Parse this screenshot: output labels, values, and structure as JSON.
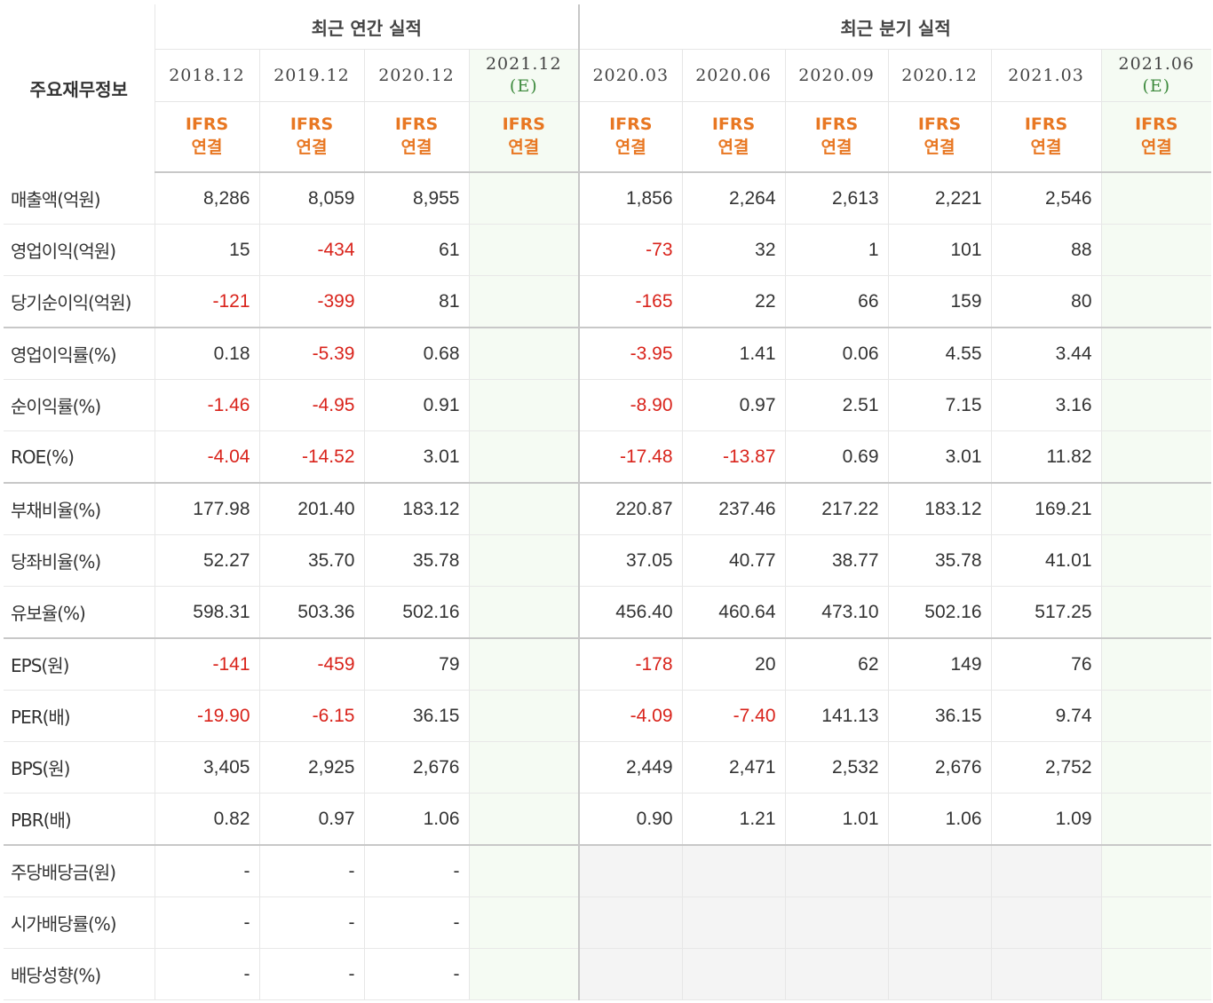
{
  "table": {
    "title": "주요재무정보",
    "groups": {
      "annual": "최근 연간 실적",
      "quarterly": "최근 분기 실적"
    },
    "annual_dates": [
      {
        "date": "2018.12",
        "tag": ""
      },
      {
        "date": "2019.12",
        "tag": ""
      },
      {
        "date": "2020.12",
        "tag": ""
      },
      {
        "date": "2021.12",
        "tag": "(E)"
      }
    ],
    "quarter_dates": [
      {
        "date": "2020.03",
        "tag": ""
      },
      {
        "date": "2020.06",
        "tag": ""
      },
      {
        "date": "2020.09",
        "tag": ""
      },
      {
        "date": "2020.12",
        "tag": ""
      },
      {
        "date": "2021.03",
        "tag": ""
      },
      {
        "date": "2021.06",
        "tag": "(E)"
      }
    ],
    "ifrs_line1": "IFRS",
    "ifrs_line2": "연결",
    "rows": [
      {
        "label": "매출액(억원)",
        "annual": [
          "8,286",
          "8,059",
          "8,955",
          ""
        ],
        "quarterly": [
          "1,856",
          "2,264",
          "2,613",
          "2,221",
          "2,546",
          ""
        ]
      },
      {
        "label": "영업이익(억원)",
        "annual": [
          "15",
          "-434",
          "61",
          ""
        ],
        "quarterly": [
          "-73",
          "32",
          "1",
          "101",
          "88",
          ""
        ]
      },
      {
        "label": "당기순이익(억원)",
        "annual": [
          "-121",
          "-399",
          "81",
          ""
        ],
        "quarterly": [
          "-165",
          "22",
          "66",
          "159",
          "80",
          ""
        ]
      },
      {
        "label": "영업이익률(%)",
        "annual": [
          "0.18",
          "-5.39",
          "0.68",
          ""
        ],
        "quarterly": [
          "-3.95",
          "1.41",
          "0.06",
          "4.55",
          "3.44",
          ""
        ]
      },
      {
        "label": "순이익률(%)",
        "annual": [
          "-1.46",
          "-4.95",
          "0.91",
          ""
        ],
        "quarterly": [
          "-8.90",
          "0.97",
          "2.51",
          "7.15",
          "3.16",
          ""
        ]
      },
      {
        "label": "ROE(%)",
        "annual": [
          "-4.04",
          "-14.52",
          "3.01",
          ""
        ],
        "quarterly": [
          "-17.48",
          "-13.87",
          "0.69",
          "3.01",
          "11.82",
          ""
        ]
      },
      {
        "label": "부채비율(%)",
        "annual": [
          "177.98",
          "201.40",
          "183.12",
          ""
        ],
        "quarterly": [
          "220.87",
          "237.46",
          "217.22",
          "183.12",
          "169.21",
          ""
        ]
      },
      {
        "label": "당좌비율(%)",
        "annual": [
          "52.27",
          "35.70",
          "35.78",
          ""
        ],
        "quarterly": [
          "37.05",
          "40.77",
          "38.77",
          "35.78",
          "41.01",
          ""
        ]
      },
      {
        "label": "유보율(%)",
        "annual": [
          "598.31",
          "503.36",
          "502.16",
          ""
        ],
        "quarterly": [
          "456.40",
          "460.64",
          "473.10",
          "502.16",
          "517.25",
          ""
        ]
      },
      {
        "label": "EPS(원)",
        "annual": [
          "-141",
          "-459",
          "79",
          ""
        ],
        "quarterly": [
          "-178",
          "20",
          "62",
          "149",
          "76",
          ""
        ]
      },
      {
        "label": "PER(배)",
        "annual": [
          "-19.90",
          "-6.15",
          "36.15",
          ""
        ],
        "quarterly": [
          "-4.09",
          "-7.40",
          "141.13",
          "36.15",
          "9.74",
          ""
        ]
      },
      {
        "label": "BPS(원)",
        "annual": [
          "3,405",
          "2,925",
          "2,676",
          ""
        ],
        "quarterly": [
          "2,449",
          "2,471",
          "2,532",
          "2,676",
          "2,752",
          ""
        ]
      },
      {
        "label": "PBR(배)",
        "annual": [
          "0.82",
          "0.97",
          "1.06",
          ""
        ],
        "quarterly": [
          "0.90",
          "1.21",
          "1.01",
          "1.06",
          "1.09",
          ""
        ]
      },
      {
        "label": "주당배당금(원)",
        "annual": [
          "-",
          "-",
          "-",
          ""
        ],
        "quarterly": null
      },
      {
        "label": "시가배당률(%)",
        "annual": [
          "-",
          "-",
          "-",
          ""
        ],
        "quarterly": null
      },
      {
        "label": "배당성향(%)",
        "annual": [
          "-",
          "-",
          "-",
          ""
        ],
        "quarterly": null
      }
    ],
    "separator_after_rows": [
      2,
      5,
      8,
      12
    ],
    "colors": {
      "negative": "#d9231b",
      "ifrs": "#e87722",
      "estimate_tag": "#3d8a3d",
      "estimate_bg": "#f5fbf3"
    }
  }
}
